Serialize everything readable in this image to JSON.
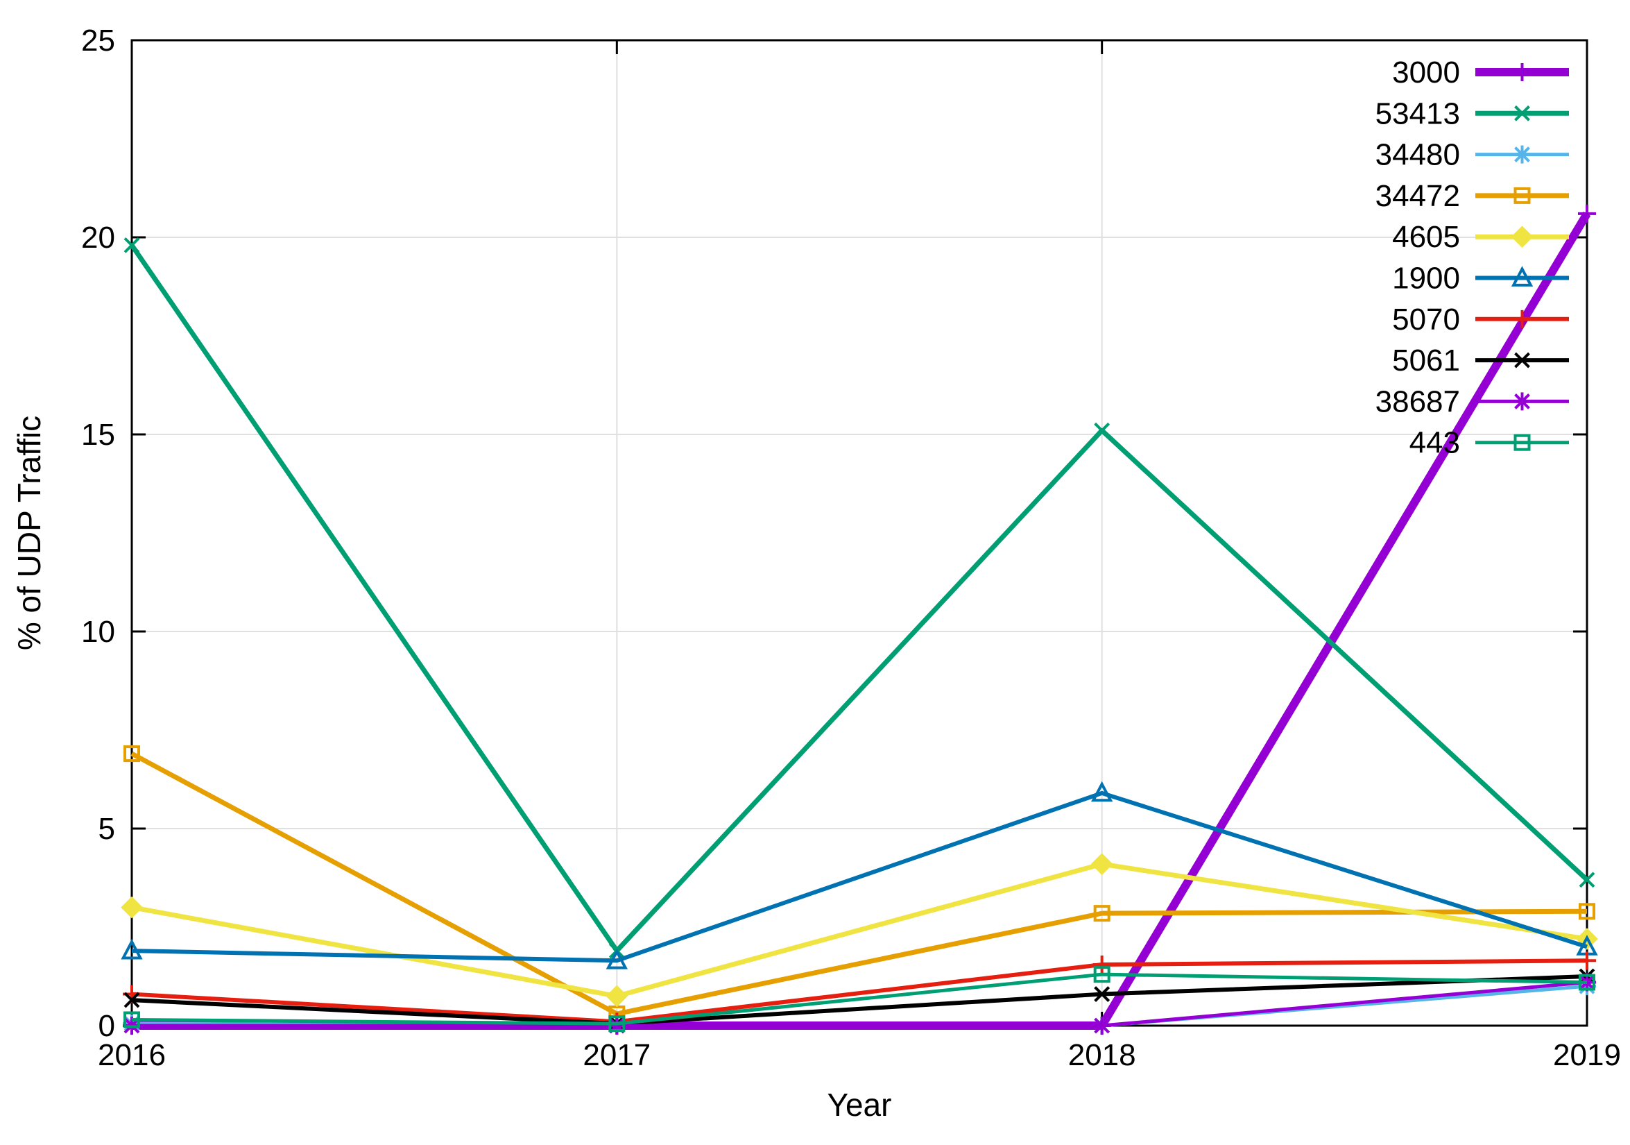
{
  "chart_data": {
    "type": "line",
    "title": "",
    "xlabel": "Year",
    "ylabel": "% of UDP Traffic",
    "x": [
      2016,
      2017,
      2018,
      2019
    ],
    "xticks": [
      2016,
      2017,
      2018,
      2019
    ],
    "yticks": [
      0,
      5,
      10,
      15,
      20,
      25
    ],
    "xlim": [
      2016,
      2019
    ],
    "ylim": [
      0,
      25
    ],
    "grid": true,
    "legend_position": "top-right-inside",
    "series": [
      {
        "name": "3000",
        "color": "#9400d3",
        "marker": "plus",
        "line_width": 12,
        "values": [
          0.0,
          0.0,
          0.0,
          20.6
        ]
      },
      {
        "name": "53413",
        "color": "#009e73",
        "marker": "x",
        "line_width": 7,
        "values": [
          19.8,
          1.9,
          15.1,
          3.7
        ]
      },
      {
        "name": "34480",
        "color": "#56b4e9",
        "marker": "asterisk",
        "line_width": 5,
        "values": [
          0.05,
          0.0,
          0.0,
          1.0
        ]
      },
      {
        "name": "34472",
        "color": "#e69f00",
        "marker": "square-open",
        "line_width": 7,
        "values": [
          6.9,
          0.3,
          2.85,
          2.9
        ]
      },
      {
        "name": "4605",
        "color": "#f0e442",
        "marker": "diamond-filled",
        "line_width": 7,
        "values": [
          3.0,
          0.75,
          4.1,
          2.2
        ]
      },
      {
        "name": "1900",
        "color": "#0072b2",
        "marker": "triangle-open",
        "line_width": 6,
        "values": [
          1.9,
          1.65,
          5.9,
          2.0
        ]
      },
      {
        "name": "5070",
        "color": "#e51e10",
        "marker": "plus",
        "line_width": 6,
        "values": [
          0.8,
          0.1,
          1.55,
          1.65
        ]
      },
      {
        "name": "5061",
        "color": "#000000",
        "marker": "x",
        "line_width": 6,
        "values": [
          0.65,
          0.05,
          0.8,
          1.25
        ]
      },
      {
        "name": "38687",
        "color": "#9400d3",
        "marker": "asterisk",
        "line_width": 5,
        "values": [
          0.0,
          0.0,
          0.0,
          1.1
        ]
      },
      {
        "name": "443",
        "color": "#009e73",
        "marker": "square-open",
        "line_width": 5,
        "values": [
          0.15,
          0.05,
          1.3,
          1.1
        ]
      }
    ]
  }
}
